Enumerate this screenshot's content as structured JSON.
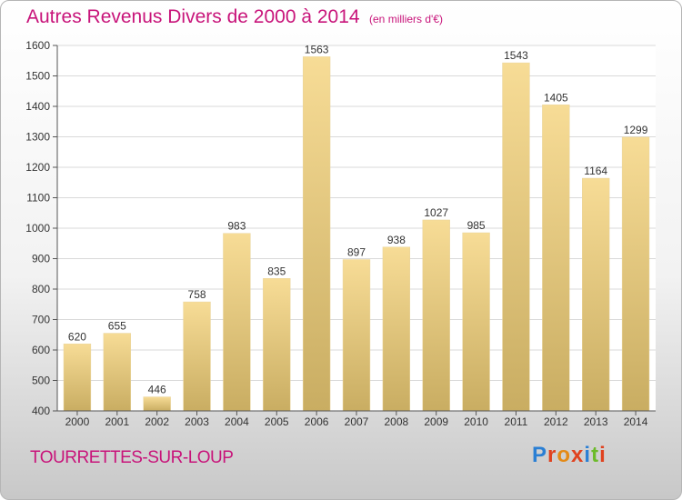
{
  "chart_data": {
    "type": "bar",
    "title": "Autres Revenus Divers de 2000 à 2014",
    "subtitle": "(en milliers d'€)",
    "categories": [
      "2000",
      "2001",
      "2002",
      "2003",
      "2004",
      "2005",
      "2006",
      "2007",
      "2008",
      "2009",
      "2010",
      "2011",
      "2012",
      "2013",
      "2014"
    ],
    "values": [
      620,
      655,
      446,
      758,
      983,
      835,
      1563,
      897,
      938,
      1027,
      985,
      1543,
      1405,
      1164,
      1299
    ],
    "ylim": [
      400,
      1600
    ],
    "yticks": [
      400,
      500,
      600,
      700,
      800,
      900,
      1000,
      1100,
      1200,
      1300,
      1400,
      1500,
      1600
    ],
    "grid": true,
    "bar_color": "#e8cb7e",
    "xlabel": "",
    "ylabel": ""
  },
  "footer": {
    "commune": "TOURRETTES-SUR-LOUP",
    "logo_text": "Proxiti"
  },
  "colors": {
    "title": "#c8147a",
    "grid": "#d9d9d9",
    "axis": "#555555"
  }
}
